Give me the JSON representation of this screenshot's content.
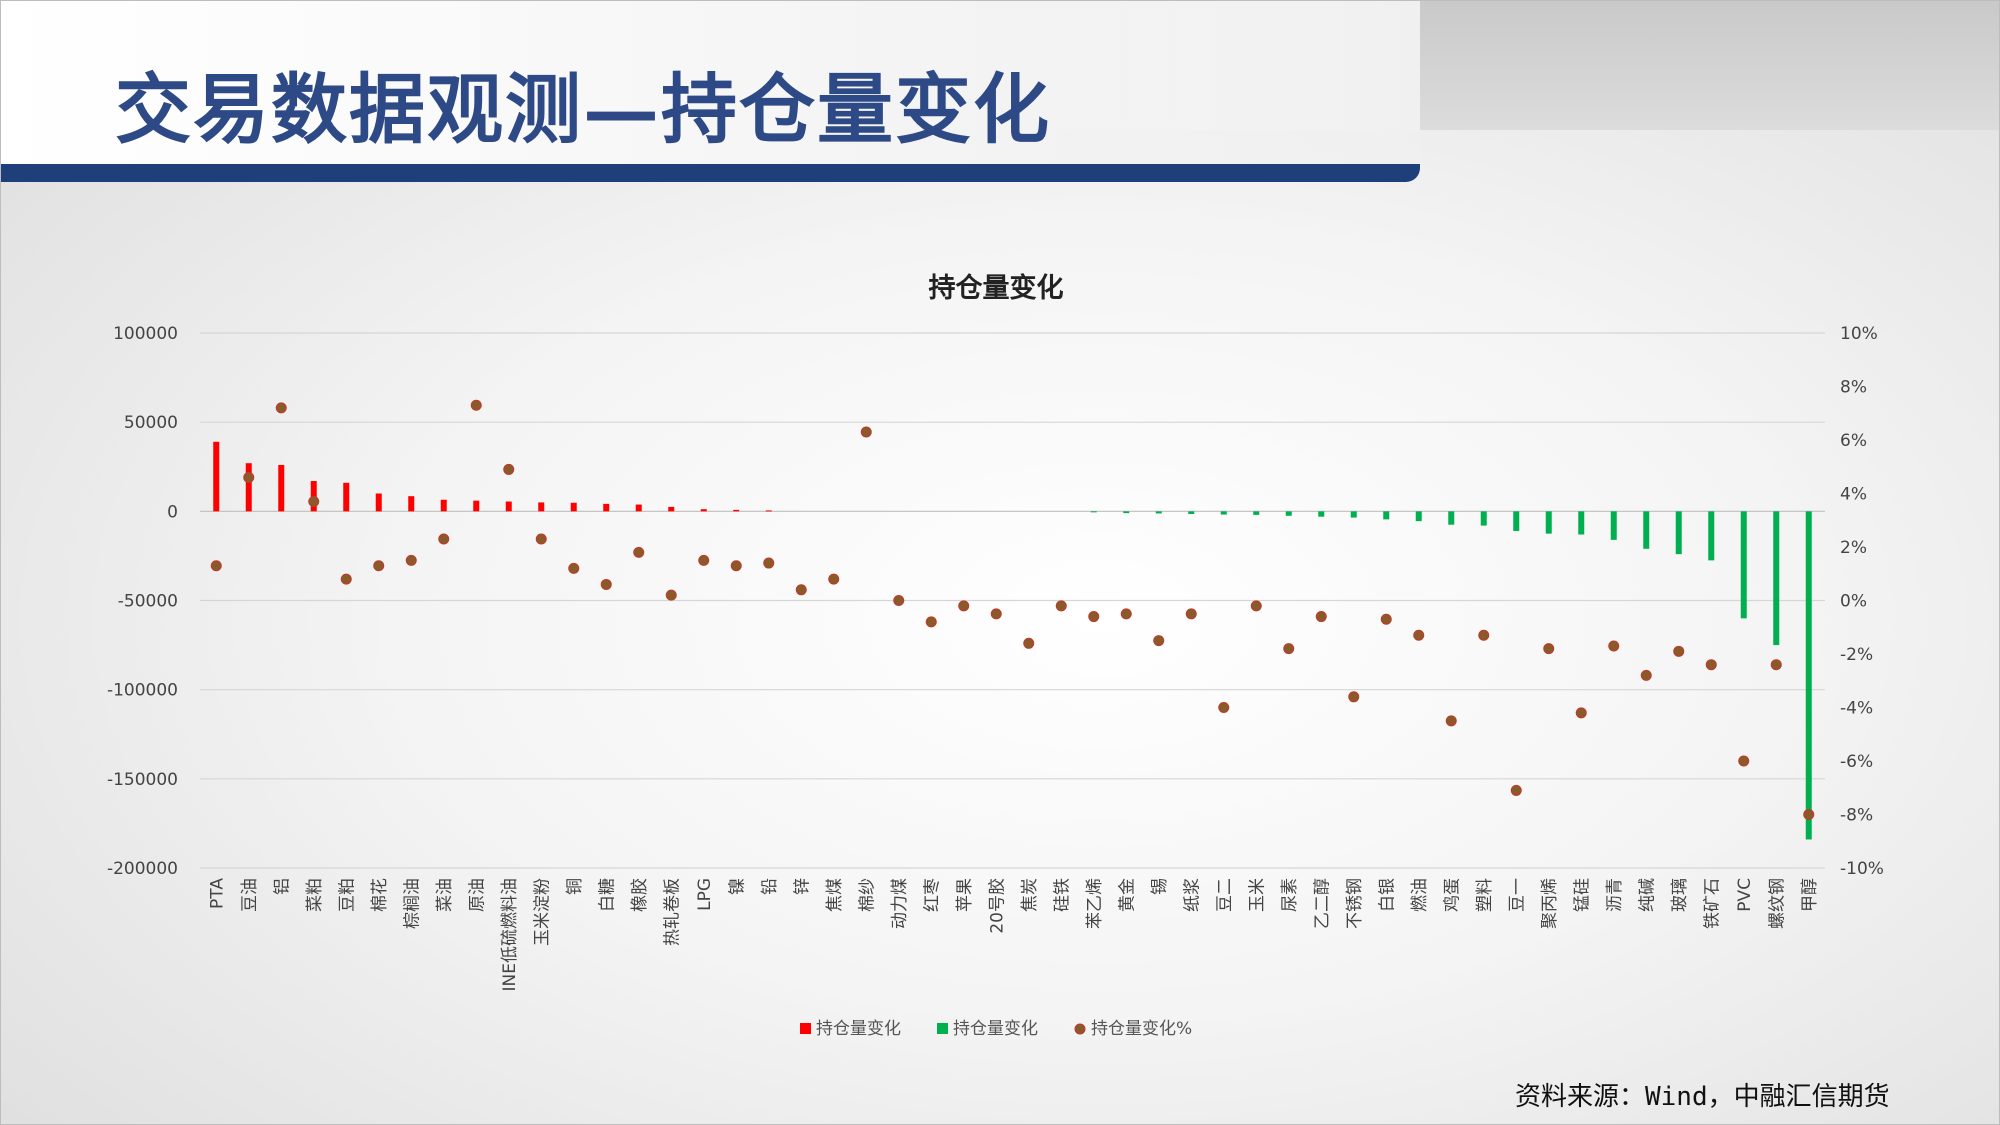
{
  "page": {
    "title": "交易数据观测—持仓量变化",
    "source": "资料来源：Wind，中融汇信期货"
  },
  "chart_data": {
    "type": "bar",
    "title": "持仓量变化",
    "categories": [
      "PTA",
      "豆油",
      "铝",
      "菜粕",
      "豆粕",
      "棉花",
      "棕榈油",
      "菜油",
      "原油",
      "INE低硫燃料油",
      "玉米淀粉",
      "铜",
      "白糖",
      "橡胶",
      "热轧卷板",
      "LPG",
      "镍",
      "铅",
      "锌",
      "焦煤",
      "棉纱",
      "动力煤",
      "红枣",
      "苹果",
      "20号胶",
      "焦炭",
      "硅铁",
      "苯乙烯",
      "黄金",
      "锡",
      "纸浆",
      "豆二",
      "玉米",
      "尿素",
      "乙二醇",
      "不锈钢",
      "白银",
      "燃油",
      "鸡蛋",
      "塑料",
      "豆一",
      "聚丙烯",
      "锰硅",
      "沥青",
      "纯碱",
      "玻璃",
      "铁矿石",
      "PVC",
      "螺纹钢",
      "甲醇"
    ],
    "series": [
      {
        "name": "持仓量变化",
        "color": "#ff0000",
        "axis": "left",
        "values": [
          39000,
          27000,
          26000,
          17000,
          16000,
          10000,
          8500,
          6500,
          6000,
          5500,
          5000,
          4800,
          4200,
          3800,
          2500,
          1200,
          800,
          500,
          null,
          null,
          null,
          null,
          null,
          null,
          null,
          null,
          null,
          null,
          null,
          null,
          null,
          null,
          null,
          null,
          null,
          null,
          null,
          null,
          null,
          null,
          null,
          null,
          null,
          null,
          null,
          null,
          null,
          null,
          null,
          null
        ]
      },
      {
        "name": "持仓量变化",
        "color": "#00b050",
        "axis": "left",
        "values": [
          null,
          null,
          null,
          null,
          null,
          null,
          null,
          null,
          null,
          null,
          null,
          null,
          null,
          null,
          null,
          null,
          null,
          null,
          null,
          null,
          null,
          null,
          null,
          null,
          null,
          null,
          null,
          -500,
          -1000,
          -1200,
          -1500,
          -1800,
          -2000,
          -2500,
          -3000,
          -3500,
          -4500,
          -5500,
          -7500,
          -8000,
          -11000,
          -12500,
          -13000,
          -16000,
          -21000,
          -24000,
          -27500,
          -60000,
          -75000,
          -184000
        ]
      },
      {
        "name": "持仓量变化%",
        "color": "#7b5a2e",
        "axis": "right",
        "values": [
          1.3,
          4.6,
          7.2,
          3.7,
          0.8,
          1.3,
          1.5,
          2.3,
          7.3,
          4.9,
          2.3,
          1.2,
          0.6,
          1.8,
          0.2,
          1.5,
          1.3,
          1.4,
          0.4,
          0.8,
          6.3,
          0.0,
          -0.8,
          -0.2,
          -0.5,
          -1.6,
          -0.2,
          -0.6,
          -0.5,
          -1.5,
          -0.5,
          -4.0,
          -0.2,
          -1.8,
          -0.6,
          -3.6,
          -0.7,
          -1.3,
          -4.5,
          -1.3,
          -7.1,
          -1.8,
          -4.2,
          -1.7,
          -2.8,
          -1.9,
          -2.4,
          -6.0,
          -2.4,
          -8.0
        ]
      }
    ],
    "y_left": {
      "min": -200000,
      "max": 100000,
      "ticks": [
        100000,
        50000,
        0,
        -50000,
        -100000,
        -150000,
        -200000
      ]
    },
    "y_right": {
      "min": -10,
      "max": 10,
      "ticks": [
        "10%",
        "8%",
        "6%",
        "4%",
        "2%",
        "0%",
        "-2%",
        "-4%",
        "-6%",
        "-8%",
        "-10%"
      ]
    },
    "grid": true,
    "legend_position": "bottom"
  }
}
